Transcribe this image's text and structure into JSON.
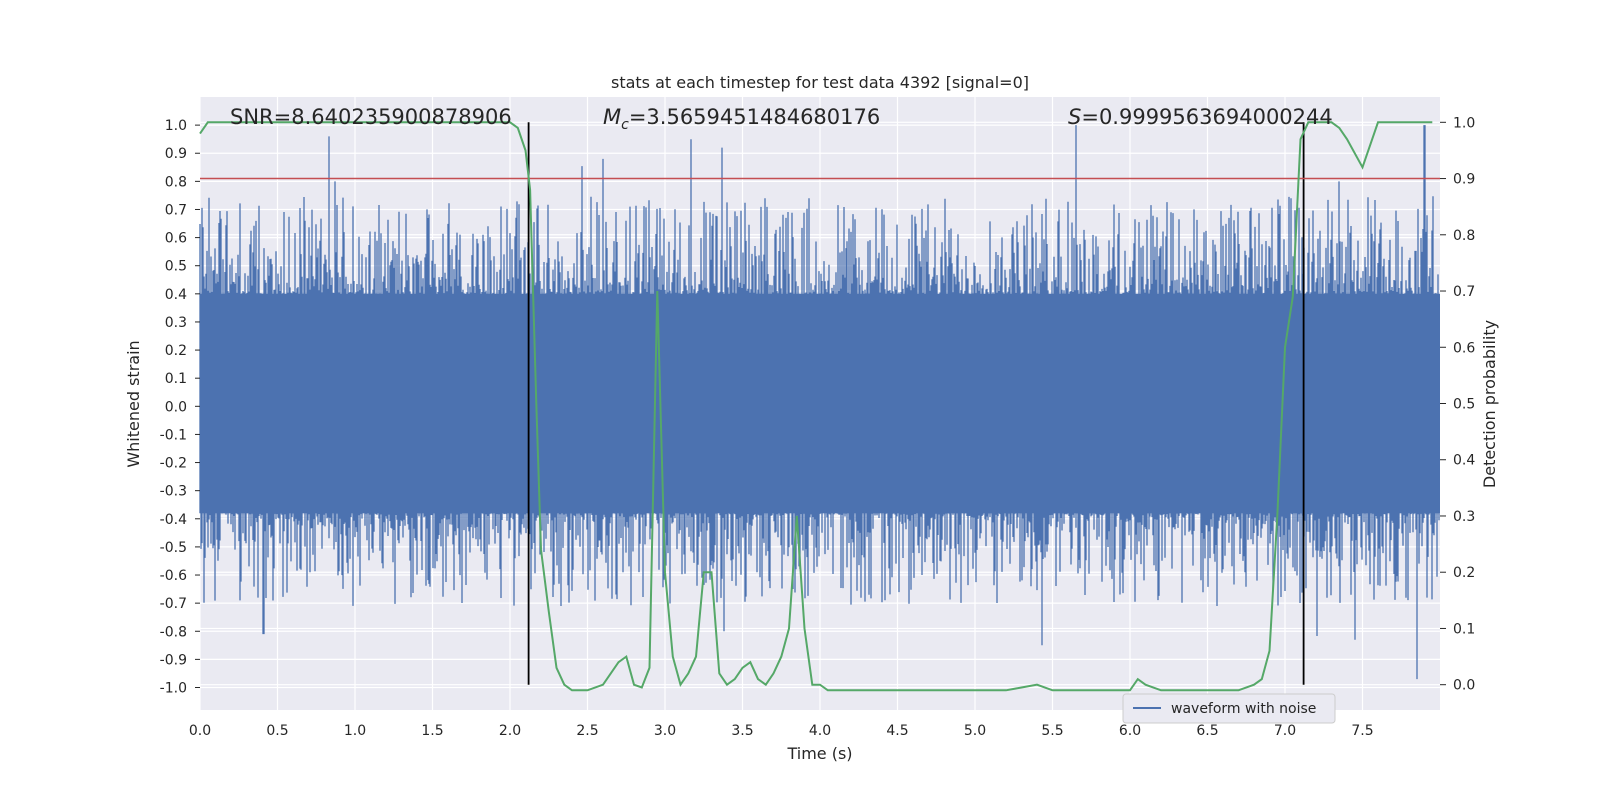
{
  "chart_data": {
    "type": "line",
    "title": "stats at each timestep for test data 4392 [signal=0]",
    "xlabel": "Time (s)",
    "ylabel": "Whitened strain",
    "y2label": "Detection probability",
    "xlim": [
      0,
      8.0
    ],
    "ylim": [
      -1.08,
      1.1
    ],
    "y2lim": [
      -0.045,
      1.045
    ],
    "xticks": [
      0.0,
      0.5,
      1.0,
      1.5,
      2.0,
      2.5,
      3.0,
      3.5,
      4.0,
      4.5,
      5.0,
      5.5,
      6.0,
      6.5,
      7.0,
      7.5
    ],
    "xtick_labels": [
      "0.0",
      "0.5",
      "1.0",
      "1.5",
      "2.0",
      "2.5",
      "3.0",
      "3.5",
      "4.0",
      "4.5",
      "5.0",
      "5.5",
      "6.0",
      "6.5",
      "7.0",
      "7.5"
    ],
    "yticks": [
      1.0,
      0.9,
      0.8,
      0.7,
      0.6,
      0.5,
      0.4,
      0.3,
      0.2,
      0.1,
      0.0,
      -0.1,
      -0.2,
      -0.3,
      -0.4,
      -0.5,
      -0.6,
      -0.7,
      -0.8,
      -0.9,
      -1.0
    ],
    "ytick_labels": [
      "1.0",
      "0.9",
      "0.8",
      "0.7",
      "0.6",
      "0.5",
      "0.4",
      "0.3",
      "0.2",
      "0.1",
      "0.0",
      "-0.1",
      "-0.2",
      "-0.3",
      "-0.4",
      "-0.5",
      "-0.6",
      "-0.7",
      "-0.8",
      "-0.9",
      "-1.0"
    ],
    "y2ticks": [
      1.0,
      0.9,
      0.8,
      0.7,
      0.6,
      0.5,
      0.4,
      0.3,
      0.2,
      0.1,
      0.0
    ],
    "y2tick_labels": [
      "1.0",
      "0.9",
      "0.8",
      "0.7",
      "0.6",
      "0.5",
      "0.4",
      "0.3",
      "0.2",
      "0.1",
      "0.0"
    ],
    "annotations": {
      "snr": "SNR=8.640235900878906",
      "mc_symbol": "M",
      "mc_sub": "c",
      "mc_value": "=3.5659451484680176",
      "s_symbol": "S",
      "s_value": "=0.9999563694000244"
    },
    "threshold": {
      "y2": 0.9,
      "color": "#c44e52"
    },
    "vertical_lines": [
      2.12,
      7.12
    ],
    "legend": {
      "label": "waveform with noise",
      "placement": "lower-right"
    },
    "waveform": {
      "name": "waveform with noise",
      "color": "#4c72b0",
      "core_upper": 0.4,
      "core_lower": -0.38,
      "seed": 4392,
      "peaks_up": [
        [
          0.83,
          0.96
        ],
        [
          0.87,
          0.8
        ],
        [
          2.6,
          0.88
        ],
        [
          3.17,
          0.95
        ],
        [
          3.37,
          0.92
        ],
        [
          5.65,
          1.0
        ],
        [
          7.35,
          0.8
        ],
        [
          7.9,
          1.0
        ]
      ],
      "peaks_down": [
        [
          0.41,
          -0.81
        ],
        [
          2.33,
          -0.71
        ],
        [
          3.38,
          -0.8
        ],
        [
          5.43,
          -0.85
        ],
        [
          7.45,
          -0.83
        ],
        [
          7.85,
          -0.97
        ]
      ]
    },
    "detection_probability": {
      "color": "#55a868",
      "t": [
        0.0,
        0.05,
        0.2,
        0.5,
        1.0,
        1.5,
        1.9,
        2.0,
        2.05,
        2.1,
        2.13,
        2.17,
        2.2,
        2.25,
        2.3,
        2.35,
        2.4,
        2.5,
        2.6,
        2.7,
        2.75,
        2.8,
        2.85,
        2.9,
        2.95,
        3.0,
        3.05,
        3.1,
        3.15,
        3.2,
        3.25,
        3.3,
        3.35,
        3.4,
        3.45,
        3.5,
        3.55,
        3.6,
        3.65,
        3.7,
        3.75,
        3.8,
        3.85,
        3.9,
        3.95,
        4.0,
        4.05,
        4.1,
        4.2,
        4.5,
        5.0,
        5.2,
        5.3,
        5.4,
        5.5,
        5.8,
        6.0,
        6.05,
        6.1,
        6.2,
        6.5,
        6.7,
        6.8,
        6.85,
        6.9,
        6.95,
        7.0,
        7.05,
        7.1,
        7.15,
        7.2,
        7.25,
        7.3,
        7.35,
        7.4,
        7.5,
        7.6,
        7.65,
        7.7,
        7.75,
        7.8,
        7.85,
        7.9,
        7.95
      ],
      "p": [
        0.98,
        1.0,
        1.0,
        1.0,
        1.0,
        1.0,
        1.0,
        1.0,
        0.99,
        0.95,
        0.88,
        0.5,
        0.24,
        0.13,
        0.03,
        0.0,
        -0.01,
        -0.01,
        0.0,
        0.04,
        0.05,
        0.0,
        -0.005,
        0.03,
        0.7,
        0.2,
        0.05,
        0.0,
        0.02,
        0.05,
        0.2,
        0.2,
        0.02,
        0.0,
        0.01,
        0.03,
        0.04,
        0.01,
        0.0,
        0.02,
        0.05,
        0.1,
        0.3,
        0.1,
        0.0,
        0.0,
        -0.01,
        -0.01,
        -0.01,
        -0.01,
        -0.01,
        -0.01,
        -0.005,
        0.0,
        -0.01,
        -0.01,
        -0.01,
        0.01,
        0.0,
        -0.01,
        -0.01,
        -0.01,
        0.0,
        0.01,
        0.06,
        0.3,
        0.6,
        0.69,
        0.97,
        1.0,
        1.0,
        1.0,
        1.0,
        0.99,
        0.97,
        0.92,
        1.0,
        1.0,
        1.0,
        1.0,
        1.0,
        1.0,
        1.0,
        1.0
      ]
    }
  }
}
